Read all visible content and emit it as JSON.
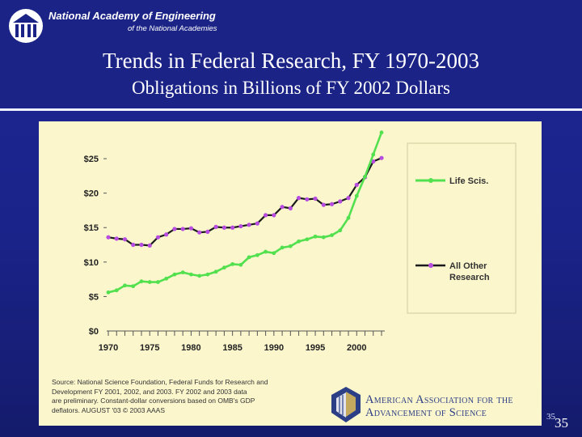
{
  "header": {
    "org_name": "National Academy of Engineering",
    "org_sub": "of the National Academies",
    "title": "Trends in Federal Research, FY 1970-2003",
    "subtitle": "Obligations in Billions of FY 2002 Dollars"
  },
  "colors": {
    "background": "#1b2486",
    "panel": "#fbf6cc",
    "life_scis": "#52e04e",
    "all_other": "#1a1a1a",
    "all_other_markers": "#b84be0",
    "aaas_blue": "#2c3f86"
  },
  "chart_data": {
    "type": "line",
    "x": [
      1970,
      1971,
      1972,
      1973,
      1974,
      1975,
      1976,
      1977,
      1978,
      1979,
      1980,
      1981,
      1982,
      1983,
      1984,
      1985,
      1986,
      1987,
      1988,
      1989,
      1990,
      1991,
      1992,
      1993,
      1994,
      1995,
      1996,
      1997,
      1998,
      1999,
      2000,
      2001,
      2002,
      2003
    ],
    "xticks": [
      "1970",
      "1975",
      "1980",
      "1985",
      "1990",
      "1995",
      "2000"
    ],
    "yticks": [
      "$0",
      "$5",
      "$10",
      "$15",
      "$20",
      "$25"
    ],
    "ylim": [
      0,
      29
    ],
    "xlim": [
      1970,
      2003
    ],
    "series": [
      {
        "name": "Life Scis.",
        "values": [
          5.6,
          5.9,
          6.6,
          6.5,
          7.2,
          7.1,
          7.1,
          7.6,
          8.2,
          8.5,
          8.2,
          8.0,
          8.2,
          8.6,
          9.2,
          9.7,
          9.6,
          10.7,
          11.0,
          11.5,
          11.3,
          12.1,
          12.3,
          13.0,
          13.3,
          13.7,
          13.6,
          13.9,
          14.6,
          16.4,
          19.6,
          22.4,
          25.6,
          28.8
        ]
      },
      {
        "name": "All Other Research",
        "values": [
          13.6,
          13.4,
          13.3,
          12.5,
          12.5,
          12.4,
          13.6,
          14.0,
          14.8,
          14.8,
          14.9,
          14.3,
          14.4,
          15.1,
          15.0,
          15.0,
          15.2,
          15.4,
          15.6,
          16.8,
          16.8,
          18.0,
          17.8,
          19.3,
          19.1,
          19.2,
          18.3,
          18.4,
          18.8,
          19.3,
          21.2,
          22.3,
          24.6,
          25.1
        ]
      }
    ],
    "legend_position": "right",
    "grid": false
  },
  "source": {
    "lines": [
      "Source: National Science Foundation, Federal Funds for Research and",
      "Development FY  2001, 2002, and 2003.  FY 2002 and 2003 data",
      "are preliminary. Constant-dollar conversions based on OMB's GDP",
      "deflators.  AUGUST '03 © 2003 AAAS"
    ]
  },
  "aaas": {
    "line1": "American Association for the",
    "line2": "Advancement of Science"
  },
  "slide": {
    "number_small": "35",
    "number_big": "35"
  }
}
